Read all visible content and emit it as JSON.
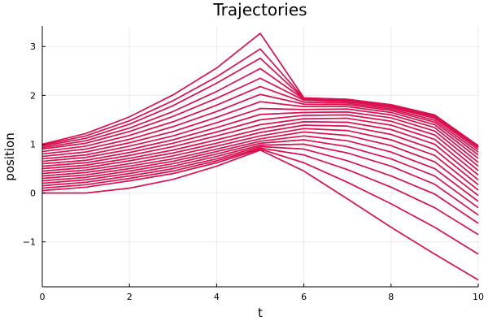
{
  "chart_data": {
    "type": "line",
    "title": "Trajectories",
    "xlabel": "t",
    "ylabel": "position",
    "xlim": [
      0,
      10
    ],
    "ylim": [
      -1.92,
      3.42
    ],
    "xticks": [
      0,
      2,
      4,
      6,
      8,
      10
    ],
    "yticks": [
      -1,
      0,
      1,
      2,
      3
    ],
    "ytick_labels": [
      "−1",
      "0",
      "1",
      "2",
      "3"
    ],
    "grid": true,
    "legend": "none",
    "line_color": "#e0104a",
    "line_color_alt": "#7a1fa8",
    "series": [
      {
        "x": [
          0,
          1,
          2,
          3,
          4,
          5,
          6,
          7,
          8,
          9,
          10
        ],
        "y": [
          0.0,
          0.0,
          0.1,
          0.28,
          0.55,
          0.88,
          0.45,
          -0.12,
          -0.7,
          -1.25,
          -1.78
        ]
      },
      {
        "x": [
          0,
          1,
          2,
          3,
          4,
          5,
          6,
          7,
          8,
          9,
          10
        ],
        "y": [
          0.05,
          0.12,
          0.25,
          0.4,
          0.62,
          0.9,
          0.62,
          0.22,
          -0.22,
          -0.7,
          -1.25
        ]
      },
      {
        "x": [
          0,
          1,
          2,
          3,
          4,
          5,
          6,
          7,
          8,
          9,
          10
        ],
        "y": [
          0.1,
          0.17,
          0.3,
          0.45,
          0.66,
          0.92,
          0.78,
          0.48,
          0.12,
          -0.3,
          -0.85
        ]
      },
      {
        "x": [
          0,
          1,
          2,
          3,
          4,
          5,
          6,
          7,
          8,
          9,
          10
        ],
        "y": [
          0.15,
          0.22,
          0.35,
          0.5,
          0.7,
          0.95,
          0.9,
          0.66,
          0.35,
          -0.02,
          -0.62
        ]
      },
      {
        "x": [
          0,
          1,
          2,
          3,
          4,
          5,
          6,
          7,
          8,
          9,
          10
        ],
        "y": [
          0.2,
          0.27,
          0.4,
          0.55,
          0.75,
          0.98,
          1.0,
          0.82,
          0.55,
          0.18,
          -0.45
        ]
      },
      {
        "x": [
          0,
          1,
          2,
          3,
          4,
          5,
          6,
          7,
          8,
          9,
          10
        ],
        "y": [
          0.25,
          0.32,
          0.45,
          0.6,
          0.8,
          1.02,
          1.09,
          0.95,
          0.7,
          0.35,
          -0.3
        ]
      },
      {
        "x": [
          0,
          1,
          2,
          3,
          4,
          5,
          6,
          7,
          8,
          9,
          10
        ],
        "y": [
          0.3,
          0.37,
          0.5,
          0.65,
          0.85,
          1.06,
          1.17,
          1.07,
          0.84,
          0.5,
          -0.17
        ]
      },
      {
        "x": [
          0,
          1,
          2,
          3,
          4,
          5,
          6,
          7,
          8,
          9,
          10
        ],
        "y": [
          0.35,
          0.42,
          0.55,
          0.7,
          0.9,
          1.11,
          1.25,
          1.18,
          0.97,
          0.64,
          -0.05
        ]
      },
      {
        "x": [
          0,
          1,
          2,
          3,
          4,
          5,
          6,
          7,
          8,
          9,
          10
        ],
        "y": [
          0.4,
          0.47,
          0.6,
          0.76,
          0.96,
          1.17,
          1.32,
          1.28,
          1.09,
          0.77,
          0.06
        ]
      },
      {
        "x": [
          0,
          1,
          2,
          3,
          4,
          5,
          6,
          7,
          8,
          9,
          10
        ],
        "y": [
          0.45,
          0.52,
          0.66,
          0.82,
          1.02,
          1.24,
          1.39,
          1.37,
          1.2,
          0.89,
          0.17
        ]
      },
      {
        "x": [
          0,
          1,
          2,
          3,
          4,
          5,
          6,
          7,
          8,
          9,
          10
        ],
        "y": [
          0.5,
          0.57,
          0.71,
          0.88,
          1.09,
          1.31,
          1.46,
          1.45,
          1.3,
          1.0,
          0.27
        ]
      },
      {
        "x": [
          0,
          1,
          2,
          3,
          4,
          5,
          6,
          7,
          8,
          9,
          10
        ],
        "y": [
          0.55,
          0.62,
          0.77,
          0.95,
          1.17,
          1.4,
          1.52,
          1.53,
          1.39,
          1.1,
          0.37
        ]
      },
      {
        "x": [
          0,
          1,
          2,
          3,
          4,
          5,
          6,
          7,
          8,
          9,
          10
        ],
        "y": [
          0.6,
          0.67,
          0.83,
          1.02,
          1.25,
          1.5,
          1.59,
          1.6,
          1.47,
          1.19,
          0.46
        ]
      },
      {
        "x": [
          0,
          1,
          2,
          3,
          4,
          5,
          6,
          7,
          8,
          9,
          10
        ],
        "y": [
          0.65,
          0.73,
          0.89,
          1.09,
          1.34,
          1.61,
          1.65,
          1.66,
          1.54,
          1.27,
          0.55
        ]
      },
      {
        "x": [
          0,
          1,
          2,
          3,
          4,
          5,
          6,
          7,
          8,
          9,
          10
        ],
        "y": [
          0.7,
          0.78,
          0.96,
          1.17,
          1.44,
          1.73,
          1.71,
          1.72,
          1.6,
          1.34,
          0.63
        ]
      },
      {
        "x": [
          0,
          1,
          2,
          3,
          4,
          5,
          6,
          7,
          8,
          9,
          10
        ],
        "y": [
          0.75,
          0.84,
          1.03,
          1.26,
          1.55,
          1.87,
          1.77,
          1.77,
          1.65,
          1.4,
          0.71
        ]
      },
      {
        "x": [
          0,
          1,
          2,
          3,
          4,
          5,
          6,
          7,
          8,
          9,
          10
        ],
        "y": [
          0.8,
          0.9,
          1.1,
          1.36,
          1.67,
          2.02,
          1.82,
          1.81,
          1.69,
          1.45,
          0.78
        ]
      },
      {
        "x": [
          0,
          1,
          2,
          3,
          4,
          5,
          6,
          7,
          8,
          9,
          10
        ],
        "y": [
          0.85,
          0.96,
          1.18,
          1.46,
          1.8,
          2.18,
          1.86,
          1.84,
          1.72,
          1.49,
          0.84
        ]
      },
      {
        "x": [
          0,
          1,
          2,
          3,
          4,
          5,
          6,
          7,
          8,
          9,
          10
        ],
        "y": [
          0.9,
          1.02,
          1.26,
          1.57,
          1.94,
          2.35,
          1.9,
          1.87,
          1.75,
          1.53,
          0.89
        ]
      },
      {
        "x": [
          0,
          1,
          2,
          3,
          4,
          5,
          6,
          7,
          8,
          9,
          10
        ],
        "y": [
          0.93,
          1.07,
          1.33,
          1.67,
          2.08,
          2.55,
          1.92,
          1.89,
          1.77,
          1.56,
          0.93
        ]
      },
      {
        "x": [
          0,
          1,
          2,
          3,
          4,
          5,
          6,
          7,
          8,
          9,
          10
        ],
        "y": [
          0.96,
          1.12,
          1.41,
          1.79,
          2.25,
          2.76,
          1.93,
          1.9,
          1.79,
          1.58,
          0.95
        ]
      },
      {
        "x": [
          0,
          1,
          2,
          3,
          4,
          5,
          6,
          7,
          8,
          9,
          10
        ],
        "y": [
          0.98,
          1.17,
          1.48,
          1.89,
          2.38,
          2.95,
          1.94,
          1.91,
          1.8,
          1.59,
          0.96
        ]
      },
      {
        "x": [
          0,
          1,
          2,
          3,
          4,
          5,
          6,
          7,
          8,
          9,
          10
        ],
        "y": [
          1.0,
          1.22,
          1.56,
          2.01,
          2.56,
          3.27,
          1.95,
          1.92,
          1.81,
          1.6,
          0.97
        ]
      }
    ]
  }
}
